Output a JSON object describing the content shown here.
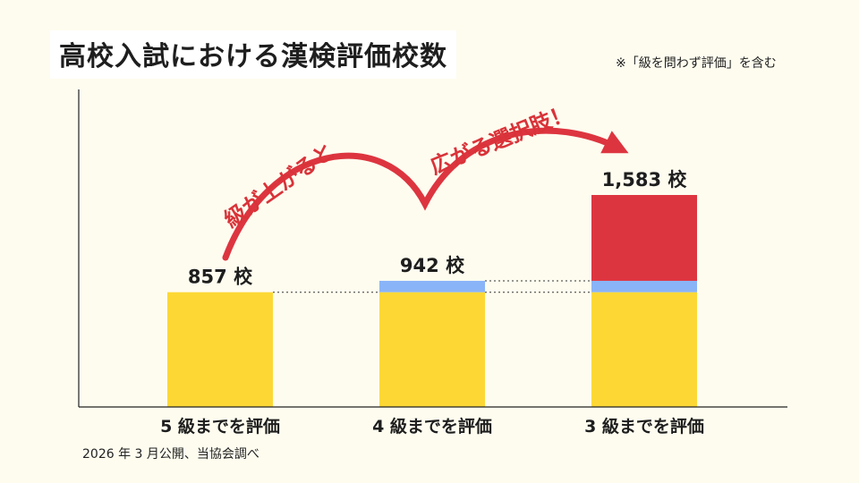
{
  "title": "高校入試における漢検評価校数",
  "note": "※「級を問わず評価」を含む",
  "source": "2026 年 3 月公開、当協会調べ",
  "annotations": {
    "left": "級が上がると",
    "right": "広がる選択肢！"
  },
  "colors": {
    "base": "#fdd835",
    "mid": "#8ab4f8",
    "top": "#dd3540",
    "arrow": "#dd3540"
  },
  "chart_data": {
    "type": "bar",
    "stacked": true,
    "categories": [
      "5 級までを評価",
      "4 級までを評価",
      "3 級までを評価"
    ],
    "totals": [
      857,
      942,
      1583
    ],
    "total_labels": [
      "857 校",
      "942 校",
      "1,583 校"
    ],
    "series": [
      {
        "color": "#fdd835",
        "values": [
          857,
          857,
          857
        ]
      },
      {
        "color": "#8ab4f8",
        "values": [
          0,
          85,
          85
        ]
      },
      {
        "color": "#dd3540",
        "values": [
          0,
          0,
          641
        ]
      }
    ],
    "ylim": [
      0,
      1900
    ],
    "grid": false,
    "legend": "none"
  }
}
